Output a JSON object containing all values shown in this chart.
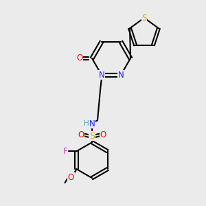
{
  "bg_color": "#ebebeb",
  "bond_color": "#000000",
  "bond_width": 1.5,
  "atom_colors": {
    "S_thiophene": "#c8b400",
    "N": "#2020ff",
    "O": "#ff0000",
    "F": "#cc44cc",
    "S_sulfo": "#c8b400",
    "O_methoxy": "#ff0000",
    "H": "#44aaaa"
  },
  "font_size": 7.5
}
